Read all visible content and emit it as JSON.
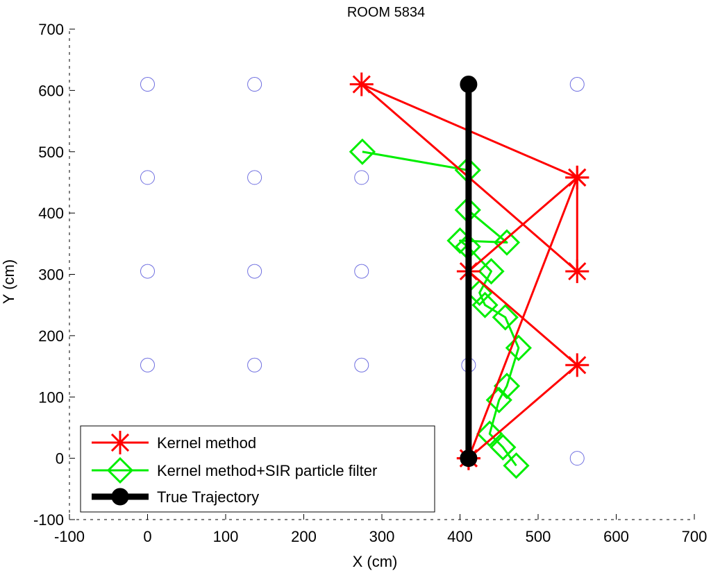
{
  "chart_data": {
    "type": "line",
    "title": "ROOM 5834",
    "xlabel": "X (cm)",
    "ylabel": "Y (cm)",
    "xlim": [
      -100,
      700
    ],
    "ylim": [
      -100,
      700
    ],
    "xticks": [
      -100,
      0,
      100,
      200,
      300,
      400,
      500,
      600,
      700
    ],
    "yticks": [
      -100,
      0,
      100,
      200,
      300,
      400,
      500,
      600,
      700
    ],
    "grid": false,
    "legend_position": "bottom-left",
    "reference_points": {
      "marker": "circle",
      "color": "#6f6fe0",
      "points": [
        [
          0,
          610
        ],
        [
          137,
          610
        ],
        [
          550,
          610
        ],
        [
          0,
          458
        ],
        [
          137,
          458
        ],
        [
          274,
          458
        ],
        [
          0,
          305
        ],
        [
          137,
          305
        ],
        [
          274,
          305
        ],
        [
          0,
          152
        ],
        [
          137,
          152
        ],
        [
          274,
          152
        ],
        [
          411,
          152
        ],
        [
          550,
          0
        ]
      ]
    },
    "series": [
      {
        "name": "Kernel method",
        "color": "#ff0000",
        "marker": "star",
        "x": [
          411,
          550,
          411,
          550,
          550,
          274,
          550,
          411
        ],
        "y": [
          0,
          152,
          305,
          458,
          305,
          610,
          458,
          0
        ]
      },
      {
        "name": "Kernel method+SIR particle filter",
        "color": "#00ee00",
        "marker": "diamond",
        "x": [
          472,
          455,
          438,
          450,
          460,
          475,
          458,
          432,
          425,
          440,
          410,
          400,
          460,
          410,
          410,
          275
        ],
        "y": [
          -12,
          18,
          40,
          95,
          118,
          180,
          230,
          250,
          270,
          305,
          345,
          355,
          352,
          405,
          470,
          500
        ]
      },
      {
        "name": "True Trajectory",
        "color": "#000000",
        "marker": "filled-circle",
        "x": [
          411,
          411
        ],
        "y": [
          0,
          610
        ]
      }
    ]
  }
}
